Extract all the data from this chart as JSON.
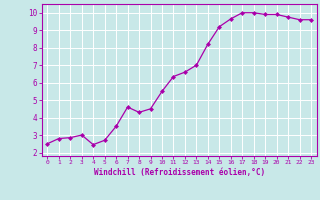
{
  "x": [
    0,
    1,
    2,
    3,
    4,
    5,
    6,
    7,
    8,
    9,
    10,
    11,
    12,
    13,
    14,
    15,
    16,
    17,
    18,
    19,
    20,
    21,
    22,
    23
  ],
  "y": [
    2.5,
    2.8,
    2.85,
    3.0,
    2.45,
    2.7,
    3.5,
    4.6,
    4.3,
    4.5,
    5.5,
    6.35,
    6.6,
    7.0,
    8.2,
    9.2,
    9.65,
    10.0,
    10.0,
    9.9,
    9.9,
    9.75,
    9.6,
    9.6
  ],
  "line_color": "#aa00aa",
  "marker": "D",
  "markersize": 2.0,
  "linewidth": 0.9,
  "background_color": "#c8e8e8",
  "grid_color": "#ffffff",
  "xlabel": "Windchill (Refroidissement éolien,°C)",
  "xlim": [
    -0.5,
    23.5
  ],
  "ylim": [
    1.8,
    10.5
  ],
  "yticks": [
    2,
    3,
    4,
    5,
    6,
    7,
    8,
    9,
    10
  ],
  "xticks": [
    0,
    1,
    2,
    3,
    4,
    5,
    6,
    7,
    8,
    9,
    10,
    11,
    12,
    13,
    14,
    15,
    16,
    17,
    18,
    19,
    20,
    21,
    22,
    23
  ],
  "tick_color": "#aa00aa",
  "label_color": "#aa00aa",
  "axis_color": "#aa00aa",
  "spine_color": "#aa00aa"
}
